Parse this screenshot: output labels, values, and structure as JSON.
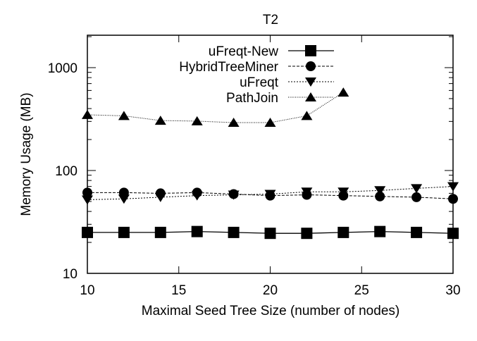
{
  "chart_data": {
    "type": "line",
    "title": "T2",
    "xlabel": "Maximal Seed Tree Size (number of nodes)",
    "ylabel": "Memory Usage (MB)",
    "xlim": [
      10,
      30
    ],
    "ylim": [
      10,
      2000
    ],
    "yscale": "log",
    "grid": false,
    "legend_position": "top-right",
    "x_ticks": [
      10,
      15,
      20,
      25,
      30
    ],
    "x_tick_labels": [
      "10",
      "15",
      "20",
      "25",
      "30"
    ],
    "y_ticks": [
      10,
      100,
      1000
    ],
    "y_tick_labels": [
      "10",
      "100",
      "1000"
    ],
    "series": [
      {
        "name": "uFreqt-New",
        "marker": "square",
        "line": "solid",
        "x": [
          10,
          12,
          14,
          16,
          18,
          20,
          22,
          24,
          26,
          28,
          30
        ],
        "values": [
          25,
          25,
          25,
          25.5,
          25,
          24.5,
          24.5,
          25,
          25.5,
          25,
          24.5
        ]
      },
      {
        "name": "HybridTreeMiner",
        "marker": "circle",
        "line": "dashed",
        "x": [
          10,
          12,
          14,
          16,
          18,
          20,
          22,
          24,
          26,
          28,
          30
        ],
        "values": [
          61,
          61,
          60,
          61,
          59,
          57,
          58,
          57,
          56,
          55,
          53
        ]
      },
      {
        "name": "uFreqt",
        "marker": "triangle-down",
        "line": "dotted",
        "x": [
          10,
          12,
          14,
          16,
          18,
          20,
          22,
          24,
          26,
          28,
          30
        ],
        "values": [
          52,
          53,
          55,
          57,
          58,
          59,
          62,
          62,
          64,
          67,
          70
        ]
      },
      {
        "name": "PathJoin",
        "marker": "triangle-up",
        "line": "fine-dotted",
        "x": [
          10,
          12,
          14,
          16,
          18,
          20,
          22,
          24
        ],
        "values": [
          348,
          340,
          306,
          302,
          292,
          292,
          340,
          575
        ]
      }
    ]
  }
}
